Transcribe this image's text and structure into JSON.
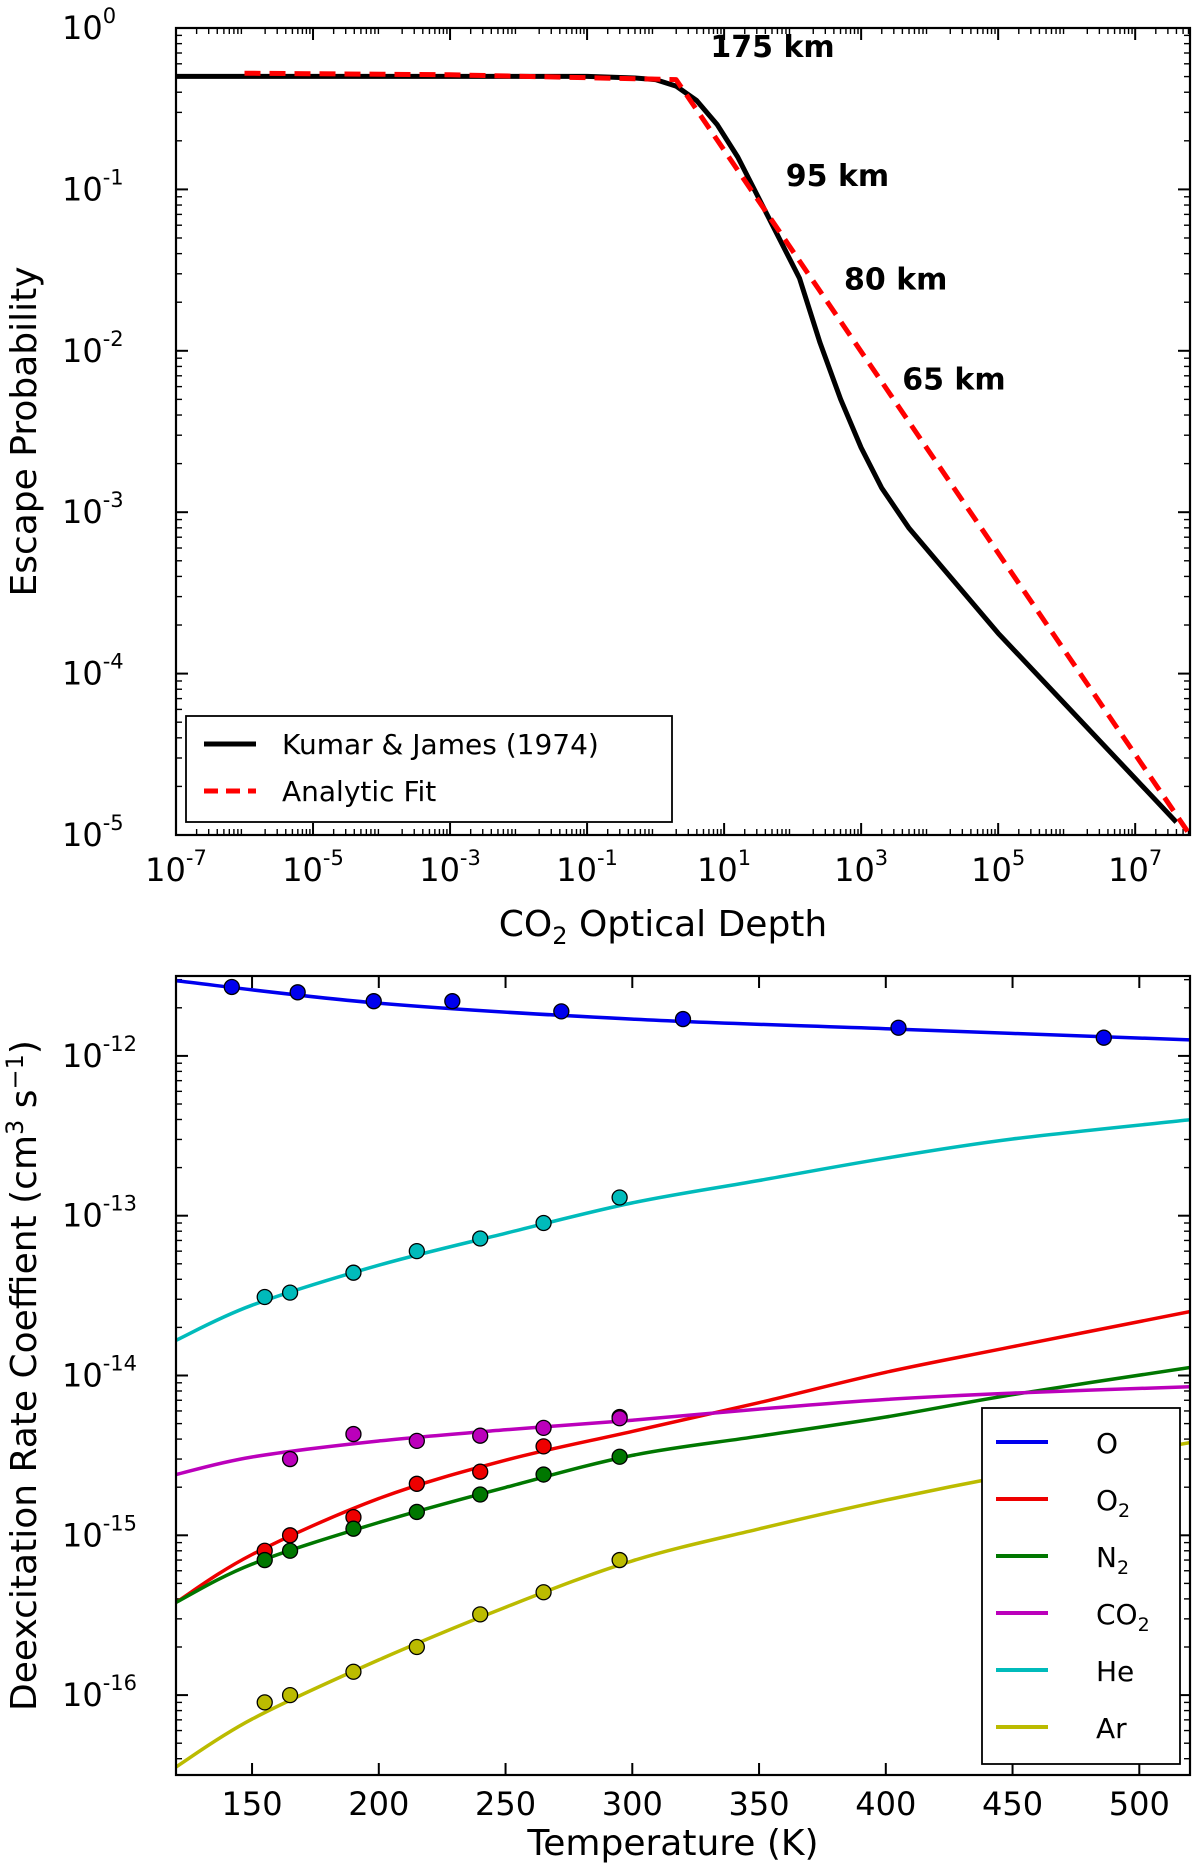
{
  "chart_data": [
    {
      "type": "line",
      "scale": {
        "x": "log",
        "y": "log"
      },
      "title": "",
      "xlabel": {
        "base": "CO",
        "sub": "2",
        "rest": " Optical Depth"
      },
      "ylabel": "Escape Probability",
      "xlim_exp": [
        -7,
        7.8
      ],
      "ylim_exp": [
        -5,
        0
      ],
      "x_ticks": [
        {
          "exp": -7,
          "base": "10",
          "sup": "-7"
        },
        {
          "exp": -5,
          "base": "10",
          "sup": "-5"
        },
        {
          "exp": -3,
          "base": "10",
          "sup": "-3"
        },
        {
          "exp": -1,
          "base": "10",
          "sup": "-1"
        },
        {
          "exp": 1,
          "base": "10",
          "sup": "1"
        },
        {
          "exp": 3,
          "base": "10",
          "sup": "3"
        },
        {
          "exp": 5,
          "base": "10",
          "sup": "5"
        },
        {
          "exp": 7,
          "base": "10",
          "sup": "7"
        }
      ],
      "y_ticks": [
        {
          "exp": 0,
          "base": "10",
          "sup": "0"
        },
        {
          "exp": -1,
          "base": "10",
          "sup": "-1"
        },
        {
          "exp": -2,
          "base": "10",
          "sup": "-2"
        },
        {
          "exp": -3,
          "base": "10",
          "sup": "-3"
        },
        {
          "exp": -4,
          "base": "10",
          "sup": "-4"
        },
        {
          "exp": -5,
          "base": "10",
          "sup": "-5"
        }
      ],
      "series": [
        {
          "name": "Kumar & James (1974)",
          "color": "#000000",
          "dash": "solid",
          "points_log10": [
            [
              -7,
              -0.3
            ],
            [
              -3,
              -0.3
            ],
            [
              -1,
              -0.3
            ],
            [
              -0.3,
              -0.31
            ],
            [
              0,
              -0.32
            ],
            [
              0.3,
              -0.36
            ],
            [
              0.6,
              -0.45
            ],
            [
              0.9,
              -0.6
            ],
            [
              1.2,
              -0.8
            ],
            [
              1.5,
              -1.05
            ],
            [
              1.8,
              -1.3
            ],
            [
              2.1,
              -1.55
            ],
            [
              2.4,
              -1.95
            ],
            [
              2.7,
              -2.3
            ],
            [
              3.0,
              -2.6
            ],
            [
              3.3,
              -2.85
            ],
            [
              3.7,
              -3.1
            ],
            [
              4.2,
              -3.35
            ],
            [
              5.0,
              -3.75
            ],
            [
              6.0,
              -4.2
            ],
            [
              7.0,
              -4.65
            ],
            [
              7.6,
              -4.92
            ]
          ]
        },
        {
          "name": "Analytic Fit",
          "color": "#ff0000",
          "dash": "dashed",
          "points_log10": [
            [
              -6,
              -0.28
            ],
            [
              -3,
              -0.29
            ],
            [
              0.3,
              -0.32
            ],
            [
              7.8,
              -5.0
            ]
          ]
        }
      ],
      "annotations": [
        {
          "text": "175 km",
          "x_exp": 0.8,
          "y_exp": -0.18
        },
        {
          "text": "95 km",
          "x_exp": 1.9,
          "y_exp": -0.98
        },
        {
          "text": "80 km",
          "x_exp": 2.75,
          "y_exp": -1.62
        },
        {
          "text": "65 km",
          "x_exp": 3.6,
          "y_exp": -2.24
        }
      ],
      "legend": {
        "position": "bottom-left",
        "entries": [
          "Kumar & James (1974)",
          "Analytic Fit"
        ]
      }
    },
    {
      "type": "line",
      "scale": {
        "x": "linear",
        "y": "log"
      },
      "title": "",
      "xlabel": "Temperature (K)",
      "ylabel": {
        "pre": "Deexcitation Rate Coeffient (cm",
        "sup": "3",
        "mid": " s",
        "sup2": "−1",
        "post": ")"
      },
      "xlim": [
        120,
        520
      ],
      "ylim_exp": [
        -16.5,
        -11.5
      ],
      "x_ticks": [
        150,
        200,
        250,
        300,
        350,
        400,
        450,
        500
      ],
      "y_ticks": [
        {
          "exp": -12,
          "base": "10",
          "sup": "-12"
        },
        {
          "exp": -13,
          "base": "10",
          "sup": "-13"
        },
        {
          "exp": -14,
          "base": "10",
          "sup": "-14"
        },
        {
          "exp": -15,
          "base": "10",
          "sup": "-15"
        },
        {
          "exp": -16,
          "base": "10",
          "sup": "-16"
        }
      ],
      "series": [
        {
          "name": "O",
          "label": {
            "base": "O",
            "sub": ""
          },
          "color": "#0000ee",
          "curve_log10": [
            [
              120,
              -11.53
            ],
            [
              200,
              -11.67
            ],
            [
              300,
              -11.77
            ],
            [
              400,
              -11.83
            ],
            [
              520,
              -11.9
            ]
          ],
          "points": [
            [
              142,
              2.7e-12
            ],
            [
              168,
              2.5e-12
            ],
            [
              198,
              2.2e-12
            ],
            [
              229,
              2.2e-12
            ],
            [
              272,
              1.9e-12
            ],
            [
              320,
              1.7e-12
            ],
            [
              405,
              1.5e-12
            ],
            [
              486,
              1.3e-12
            ]
          ]
        },
        {
          "name": "O2",
          "label": {
            "base": "O",
            "sub": "2"
          },
          "color": "#ee0000",
          "curve_log10": [
            [
              120,
              -15.42
            ],
            [
              150,
              -15.12
            ],
            [
              200,
              -14.77
            ],
            [
              250,
              -14.53
            ],
            [
              300,
              -14.35
            ],
            [
              350,
              -14.17
            ],
            [
              400,
              -13.98
            ],
            [
              450,
              -13.82
            ],
            [
              520,
              -13.6
            ]
          ],
          "points": [
            [
              155,
              8e-16
            ],
            [
              165,
              1e-15
            ],
            [
              190,
              1.3e-15
            ],
            [
              215,
              2.1e-15
            ],
            [
              240,
              2.5e-15
            ],
            [
              265,
              3.6e-15
            ],
            [
              295,
              5.5e-15
            ]
          ]
        },
        {
          "name": "N2",
          "label": {
            "base": "N",
            "sub": "2"
          },
          "color": "#007700",
          "curve_log10": [
            [
              120,
              -15.42
            ],
            [
              150,
              -15.18
            ],
            [
              200,
              -14.92
            ],
            [
              250,
              -14.7
            ],
            [
              300,
              -14.5
            ],
            [
              350,
              -14.38
            ],
            [
              400,
              -14.26
            ],
            [
              450,
              -14.12
            ],
            [
              520,
              -13.95
            ]
          ],
          "points": [
            [
              155,
              7e-16
            ],
            [
              165,
              8e-16
            ],
            [
              190,
              1.1e-15
            ],
            [
              215,
              1.4e-15
            ],
            [
              240,
              1.8e-15
            ],
            [
              265,
              2.4e-15
            ],
            [
              295,
              3.1e-15
            ]
          ]
        },
        {
          "name": "CO2",
          "label": {
            "base": "CO",
            "sub": "2"
          },
          "color": "#bb00bb",
          "curve_log10": [
            [
              120,
              -14.62
            ],
            [
              150,
              -14.51
            ],
            [
              200,
              -14.41
            ],
            [
              250,
              -14.34
            ],
            [
              300,
              -14.28
            ],
            [
              350,
              -14.21
            ],
            [
              400,
              -14.15
            ],
            [
              450,
              -14.11
            ],
            [
              520,
              -14.07
            ]
          ],
          "points": [
            [
              165,
              3e-15
            ],
            [
              190,
              4.3e-15
            ],
            [
              215,
              3.9e-15
            ],
            [
              240,
              4.2e-15
            ],
            [
              265,
              4.7e-15
            ],
            [
              295,
              5.4e-15
            ]
          ]
        },
        {
          "name": "He",
          "label": {
            "base": "He",
            "sub": ""
          },
          "color": "#00bbbb",
          "curve_log10": [
            [
              120,
              -13.78
            ],
            [
              150,
              -13.56
            ],
            [
              200,
              -13.31
            ],
            [
              250,
              -13.11
            ],
            [
              300,
              -12.92
            ],
            [
              350,
              -12.78
            ],
            [
              400,
              -12.64
            ],
            [
              450,
              -12.52
            ],
            [
              520,
              -12.4
            ]
          ],
          "points": [
            [
              155,
              3.1e-14
            ],
            [
              165,
              3.3e-14
            ],
            [
              190,
              4.4e-14
            ],
            [
              215,
              6e-14
            ],
            [
              240,
              7.2e-14
            ],
            [
              265,
              9e-14
            ],
            [
              295,
              1.3e-13
            ]
          ]
        },
        {
          "name": "Ar",
          "label": {
            "base": "Ar",
            "sub": ""
          },
          "color": "#bbbb00",
          "curve_log10": [
            [
              120,
              -16.45
            ],
            [
              150,
              -16.15
            ],
            [
              200,
              -15.78
            ],
            [
              250,
              -15.45
            ],
            [
              300,
              -15.16
            ],
            [
              350,
              -14.96
            ],
            [
              400,
              -14.78
            ],
            [
              450,
              -14.62
            ],
            [
              520,
              -14.42
            ]
          ],
          "points": [
            [
              155,
              9e-17
            ],
            [
              165,
              1e-16
            ],
            [
              190,
              1.4e-16
            ],
            [
              215,
              2e-16
            ],
            [
              240,
              3.2e-16
            ],
            [
              265,
              4.4e-16
            ],
            [
              295,
              7e-16
            ]
          ]
        }
      ],
      "legend": {
        "position": "bottom-right",
        "entries": [
          "O",
          "O2",
          "N2",
          "CO2",
          "He",
          "Ar"
        ]
      }
    }
  ]
}
